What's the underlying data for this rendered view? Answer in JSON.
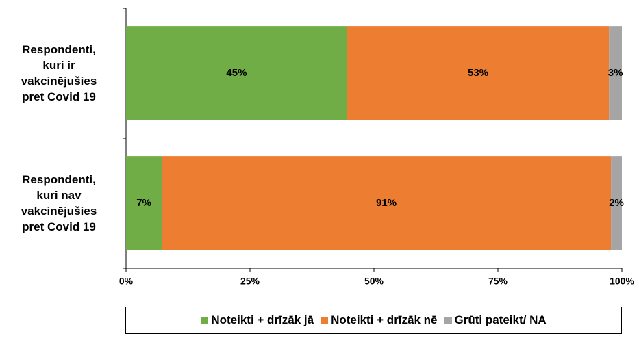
{
  "chart_data": {
    "type": "stacked-barh",
    "categories": [
      "Respondenti,\nkuri ir\nvakcinējušies\npret Covid 19",
      "Respondenti,\nkuri nav\nvakcinējušies\npret Covid 19"
    ],
    "series": [
      {
        "name": "Noteikti + drīzāk jā",
        "color": "#70ad47",
        "values": [
          44.6,
          7.2
        ],
        "value_labels": [
          "45%",
          "7%"
        ]
      },
      {
        "name": "Noteikti + drīzāk nē",
        "color": "#ed7d31",
        "values": [
          52.8,
          90.6
        ],
        "value_labels": [
          "53%",
          "91%"
        ]
      },
      {
        "name": "Grūti pateikt/ NA",
        "color": "#a5a5a5",
        "values": [
          2.6,
          2.2
        ],
        "value_labels": [
          "3%",
          "2%"
        ]
      }
    ],
    "xlim": [
      0,
      100
    ],
    "xticks": [
      {
        "value": 0,
        "label": "0%"
      },
      {
        "value": 25,
        "label": "25%"
      },
      {
        "value": 50,
        "label": "50%"
      },
      {
        "value": 75,
        "label": "75%"
      },
      {
        "value": 100,
        "label": "100%"
      }
    ],
    "legend": "bottom"
  }
}
